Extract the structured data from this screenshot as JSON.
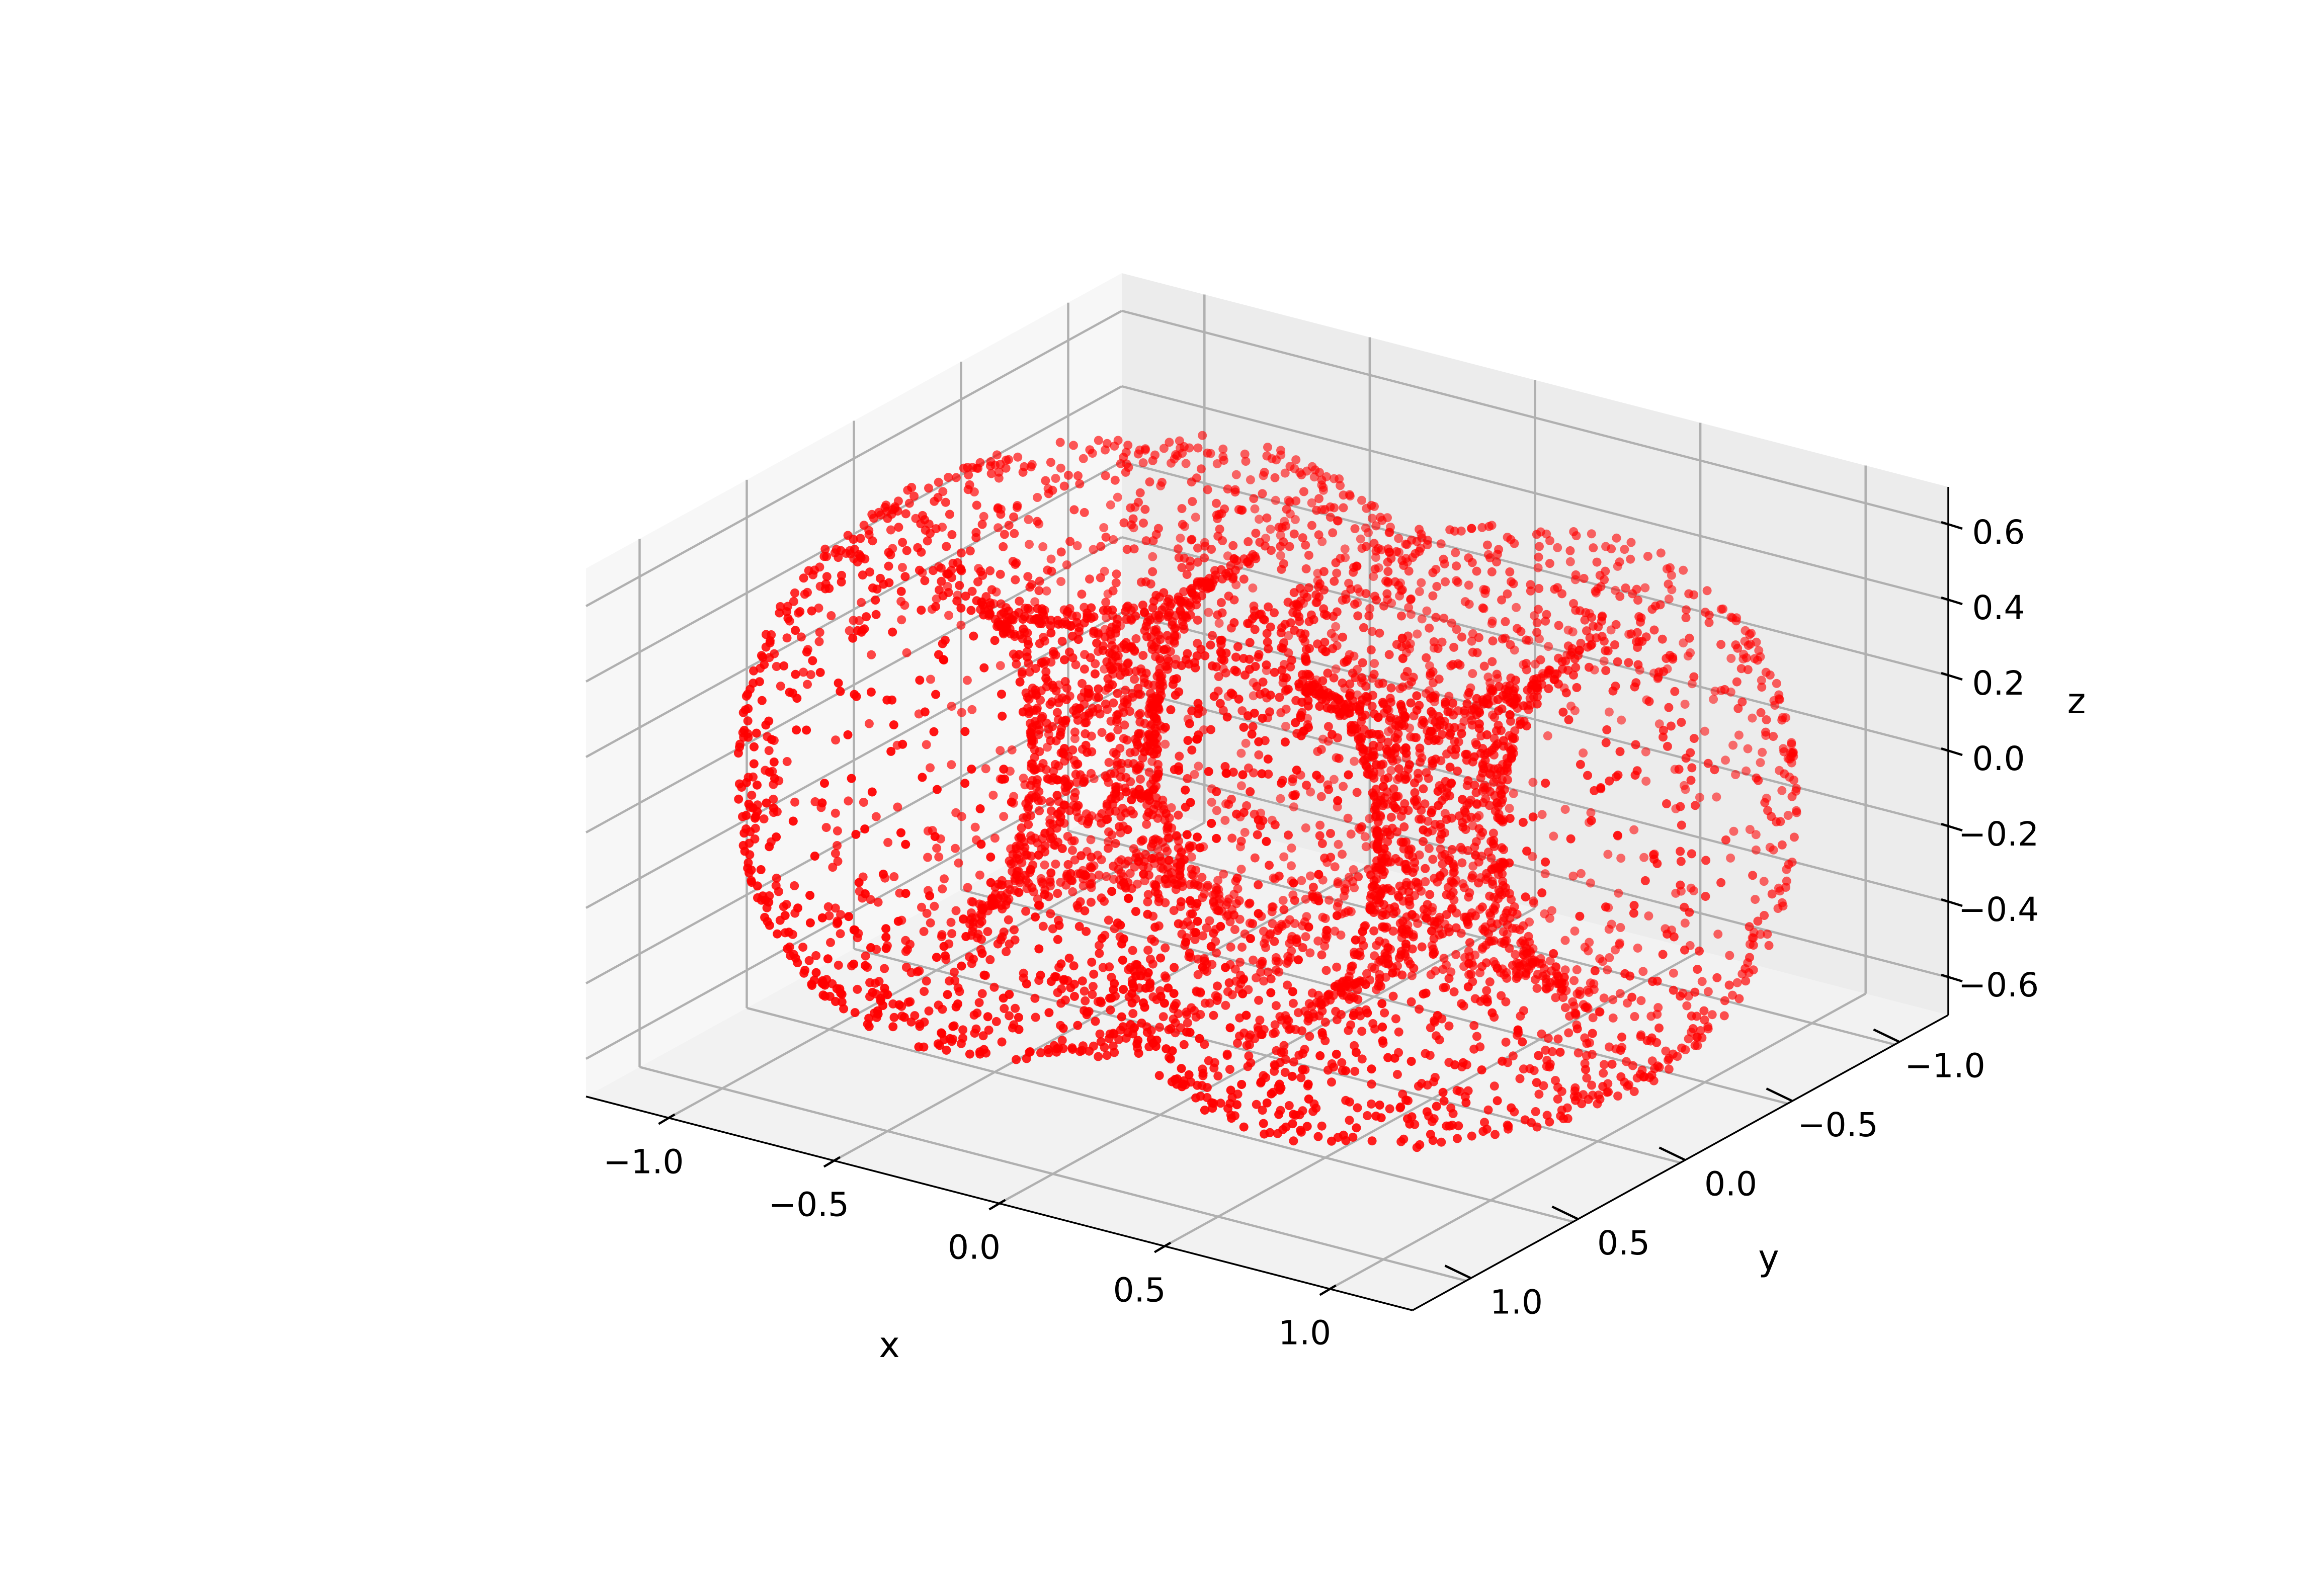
{
  "chart_data": {
    "type": "scatter",
    "projection": "3d",
    "title": "",
    "marker_color": "#ff0000",
    "grid": true,
    "pane_colors": [
      "#f2f2f2",
      "#f7f7f7",
      "#ececec"
    ],
    "grid_color": "#b0b0b0",
    "surface": "double torus",
    "point_count_estimate": 5000,
    "xlabel": "x",
    "ylabel": "y",
    "zlabel": "z",
    "xlim": [
      -1.25,
      1.25
    ],
    "ylim": [
      -1.25,
      1.25
    ],
    "zlim": [
      -0.7,
      0.7
    ],
    "xticks": [
      {
        "value": -1.0,
        "label": "−1.0"
      },
      {
        "value": -0.5,
        "label": "−0.5"
      },
      {
        "value": 0.0,
        "label": "0.0"
      },
      {
        "value": 0.5,
        "label": "0.5"
      },
      {
        "value": 1.0,
        "label": "1.0"
      }
    ],
    "yticks": [
      {
        "value": -1.0,
        "label": "−1.0"
      },
      {
        "value": -0.5,
        "label": "−0.5"
      },
      {
        "value": 0.0,
        "label": "0.0"
      },
      {
        "value": 0.5,
        "label": "0.5"
      },
      {
        "value": 1.0,
        "label": "1.0"
      }
    ],
    "zticks": [
      {
        "value": -0.6,
        "label": "−0.6"
      },
      {
        "value": -0.4,
        "label": "−0.4"
      },
      {
        "value": -0.2,
        "label": "−0.2"
      },
      {
        "value": 0.0,
        "label": "0.0"
      },
      {
        "value": 0.2,
        "label": "0.2"
      },
      {
        "value": 0.4,
        "label": "0.4"
      },
      {
        "value": 0.6,
        "label": "0.6"
      }
    ]
  }
}
